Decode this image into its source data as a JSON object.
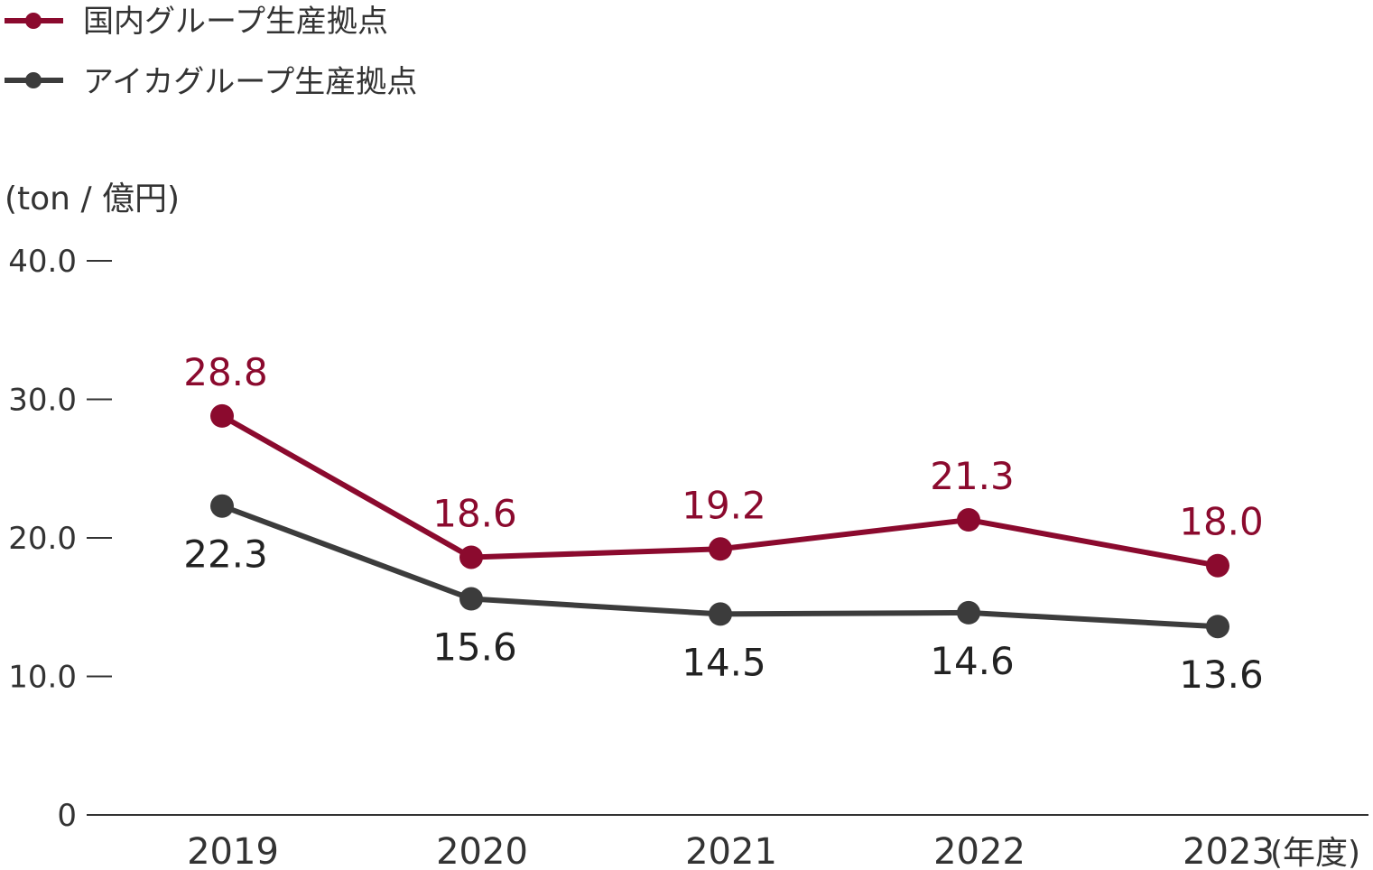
{
  "chart_data": {
    "type": "line",
    "categories": [
      "2019",
      "2020",
      "2021",
      "2022",
      "2023"
    ],
    "x_unit_label": "(年度)",
    "y_unit_label": "(ton / 億円)",
    "yticks": [
      "0",
      "10.0",
      "20.0",
      "30.0",
      "40.0"
    ],
    "ylim": [
      0,
      40
    ],
    "legend_position": "top-left",
    "grid": false,
    "series": [
      {
        "name": "国内グループ生産拠点",
        "color": "#8b0a2e",
        "values": [
          28.8,
          18.6,
          19.2,
          21.3,
          18.0
        ],
        "labels": [
          "28.8",
          "18.6",
          "19.2",
          "21.3",
          "18.0"
        ],
        "label_position": "above"
      },
      {
        "name": "アイカグループ生産拠点",
        "color": "#3c3c3c",
        "values": [
          22.3,
          15.6,
          14.5,
          14.6,
          13.6
        ],
        "labels": [
          "22.3",
          "15.6",
          "14.5",
          "14.6",
          "13.6"
        ],
        "label_position": "below"
      }
    ]
  }
}
